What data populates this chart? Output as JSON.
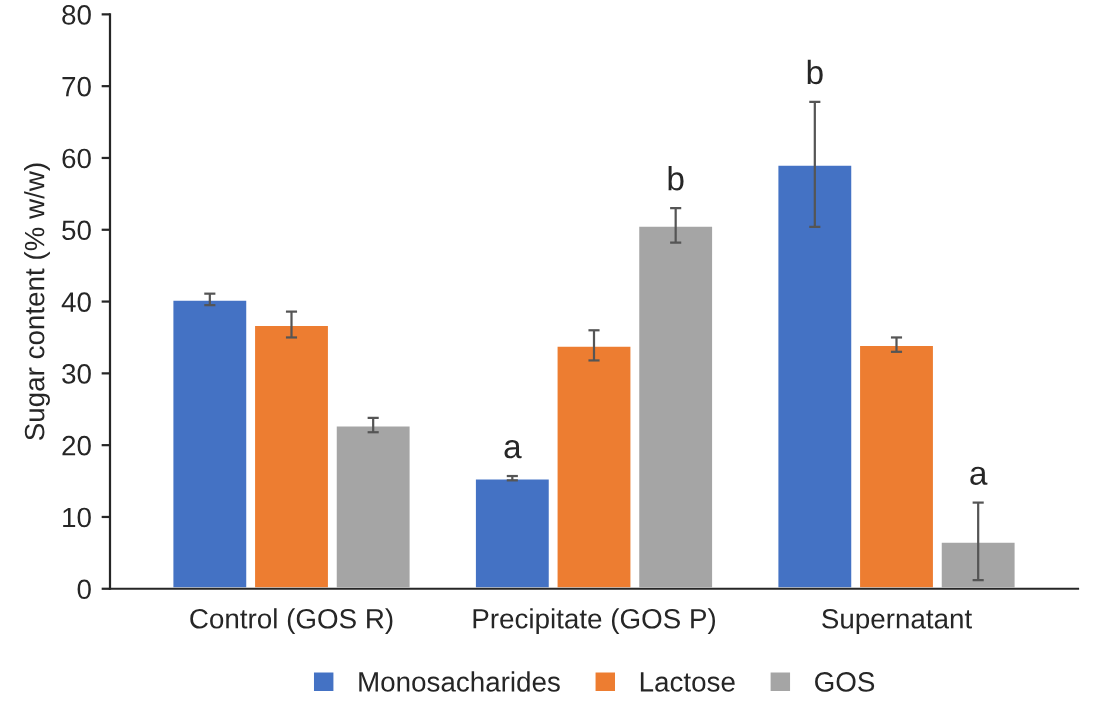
{
  "chart_data": {
    "type": "bar",
    "ylabel": "Sugar content (% w/w)",
    "categories": [
      "Control (GOS R)",
      "Precipitate (GOS P)",
      "Supernatant"
    ],
    "series": [
      {
        "name": "Monosacharides",
        "color": "#4472c4",
        "values": [
          40.3,
          15.4,
          59.1
        ],
        "errors": [
          0.8,
          0.3,
          8.7
        ],
        "value_labels": [
          null,
          "a",
          "b"
        ]
      },
      {
        "name": "Lactose",
        "color": "#ed7d31",
        "values": [
          36.8,
          33.9,
          34.0
        ],
        "errors": [
          1.8,
          2.1,
          1.0
        ]
      },
      {
        "name": "GOS",
        "color": "#a5a5a5",
        "values": [
          22.8,
          50.6,
          6.6
        ],
        "errors": [
          1.0,
          2.4,
          5.4
        ],
        "value_labels": [
          null,
          "b",
          "a"
        ]
      }
    ],
    "ylim": [
      0,
      80
    ],
    "yticks": [
      0,
      10,
      20,
      30,
      40,
      50,
      60,
      70,
      80
    ],
    "grid": false,
    "legend": "bottom"
  }
}
